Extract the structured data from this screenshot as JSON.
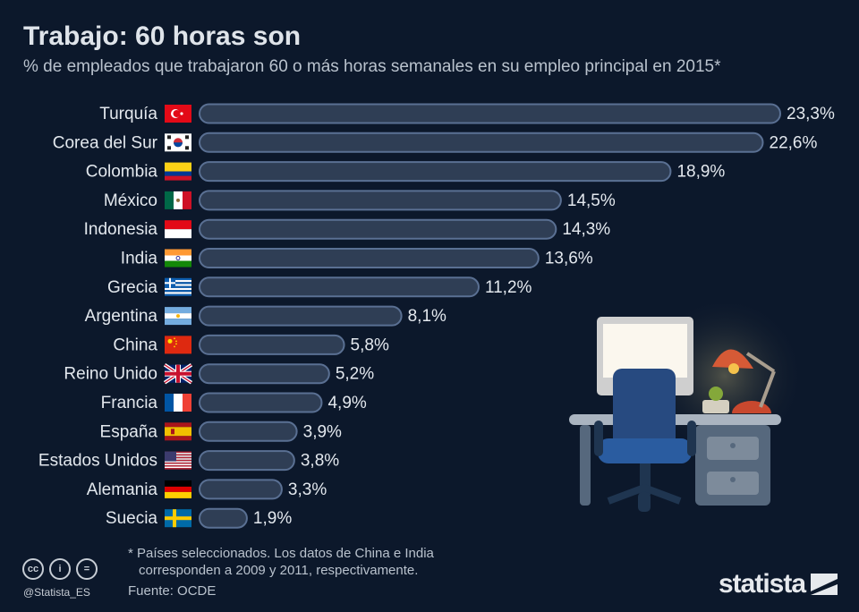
{
  "header": {
    "title": "Trabajo: 60 horas son",
    "subtitle": "% de empleados que trabajaron 60 o más horas semanales en su empleo principal en 2015*"
  },
  "chart_data": {
    "type": "bar",
    "orientation": "horizontal",
    "categories": [
      "Turquía",
      "Corea del Sur",
      "Colombia",
      "México",
      "Indonesia",
      "India",
      "Grecia",
      "Argentina",
      "China",
      "Reino Unido",
      "Francia",
      "España",
      "Estados Unidos",
      "Alemania",
      "Suecia"
    ],
    "values": [
      23.3,
      22.6,
      18.9,
      14.5,
      14.3,
      13.6,
      11.2,
      8.1,
      5.8,
      5.2,
      4.9,
      3.9,
      3.8,
      3.3,
      1.9
    ],
    "data_labels": [
      "23,3%",
      "22,6%",
      "18,9%",
      "14,5%",
      "14,3%",
      "13,6%",
      "11,2%",
      "8,1%",
      "5,8%",
      "5,2%",
      "4,9%",
      "3,9%",
      "3,8%",
      "3,3%",
      "1,9%"
    ],
    "flags": [
      "turkey",
      "south-korea",
      "colombia",
      "mexico",
      "indonesia",
      "india",
      "greece",
      "argentina",
      "china",
      "uk",
      "france",
      "spain",
      "usa",
      "germany",
      "sweden"
    ],
    "bar_fill": "#2f3e55",
    "bar_stroke": "#5a7093",
    "xlim": [
      0,
      23.3
    ],
    "grid": false,
    "legend": "none"
  },
  "footer": {
    "note_line1": "* Países seleccionados. Los datos de China e India",
    "note_line2": "corresponden a 2009 y 2011, respectivamente.",
    "source": "Fuente: OCDE",
    "handle": "@Statista_ES",
    "brand": "statista",
    "cc_icons": [
      "cc-icon",
      "by-icon",
      "nd-icon"
    ]
  }
}
